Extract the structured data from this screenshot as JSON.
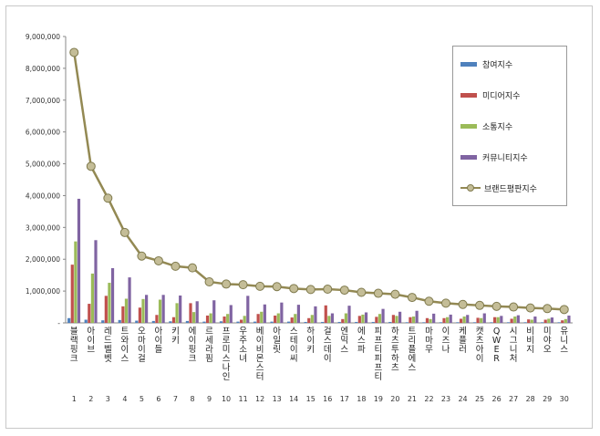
{
  "chart_data": {
    "type": "bar",
    "categories": [
      "블랙핑크",
      "아이브",
      "레드벨벳",
      "트와이스",
      "오마이걸",
      "아이들",
      "키키",
      "에이핑크",
      "르세라핌",
      "프로미스나인",
      "우주소녀",
      "베이비몬스터",
      "아일릿",
      "스테이씨",
      "하이키",
      "걸스데이",
      "엔믹스",
      "에스파",
      "피프티피프티",
      "하츠투하츠",
      "트리플에스",
      "마마무",
      "이즈나",
      "케플러",
      "캣츠아이",
      "QWER",
      "시그니처",
      "비비지",
      "미야오",
      "유니스"
    ],
    "ranks": [
      "1",
      "2",
      "3",
      "4",
      "5",
      "6",
      "7",
      "8",
      "9",
      "10",
      "11",
      "12",
      "13",
      "14",
      "15",
      "16",
      "17",
      "18",
      "19",
      "20",
      "21",
      "22",
      "23",
      "24",
      "25",
      "26",
      "27",
      "28",
      "29",
      "30"
    ],
    "series": [
      {
        "name": "참여지수",
        "type": "bar",
        "color": "#4f81bd",
        "values": [
          150000,
          100000,
          80000,
          90000,
          70000,
          60000,
          50000,
          60000,
          40000,
          50000,
          40000,
          40000,
          40000,
          40000,
          30000,
          30000,
          30000,
          30000,
          30000,
          30000,
          20000,
          20000,
          20000,
          20000,
          20000,
          20000,
          20000,
          20000,
          20000,
          20000
        ]
      },
      {
        "name": "미디어지수",
        "type": "bar",
        "color": "#c0504d",
        "values": [
          1830000,
          600000,
          850000,
          520000,
          480000,
          250000,
          180000,
          620000,
          230000,
          200000,
          100000,
          280000,
          230000,
          170000,
          150000,
          550000,
          120000,
          220000,
          190000,
          250000,
          180000,
          150000,
          150000,
          130000,
          160000,
          180000,
          130000,
          110000,
          100000,
          80000
        ]
      },
      {
        "name": "소통지수",
        "type": "bar",
        "color": "#9bbb59",
        "values": [
          2560000,
          1550000,
          1260000,
          760000,
          750000,
          730000,
          620000,
          340000,
          300000,
          280000,
          220000,
          350000,
          300000,
          280000,
          250000,
          220000,
          300000,
          260000,
          280000,
          220000,
          200000,
          120000,
          180000,
          200000,
          150000,
          180000,
          200000,
          100000,
          130000,
          120000
        ]
      },
      {
        "name": "커뮤니티지수",
        "type": "bar",
        "color": "#8064a2",
        "values": [
          3900000,
          2600000,
          1720000,
          1430000,
          880000,
          880000,
          860000,
          680000,
          710000,
          560000,
          850000,
          580000,
          640000,
          570000,
          520000,
          300000,
          540000,
          330000,
          440000,
          350000,
          380000,
          290000,
          260000,
          250000,
          300000,
          220000,
          240000,
          200000,
          170000,
          230000
        ]
      },
      {
        "name": "브랜드평판지수",
        "type": "line",
        "color": "#938953",
        "values": [
          8500000,
          4920000,
          3920000,
          2840000,
          2100000,
          1950000,
          1780000,
          1730000,
          1290000,
          1220000,
          1200000,
          1150000,
          1140000,
          1080000,
          1050000,
          1060000,
          1030000,
          960000,
          930000,
          900000,
          800000,
          680000,
          620000,
          580000,
          550000,
          520000,
          500000,
          470000,
          450000,
          420000
        ]
      }
    ],
    "ylim": [
      0,
      9000000
    ],
    "yticks": [
      "-",
      "1,000,000",
      "2,000,000",
      "3,000,000",
      "4,000,000",
      "5,000,000",
      "6,000,000",
      "7,000,000",
      "8,000,000",
      "9,000,000"
    ],
    "grid": false,
    "legend_position": "right"
  },
  "legend": {
    "items": [
      "참여지수",
      "미디어지수",
      "소통지수",
      "커뮤니티지수",
      "브랜드평판지수"
    ]
  }
}
